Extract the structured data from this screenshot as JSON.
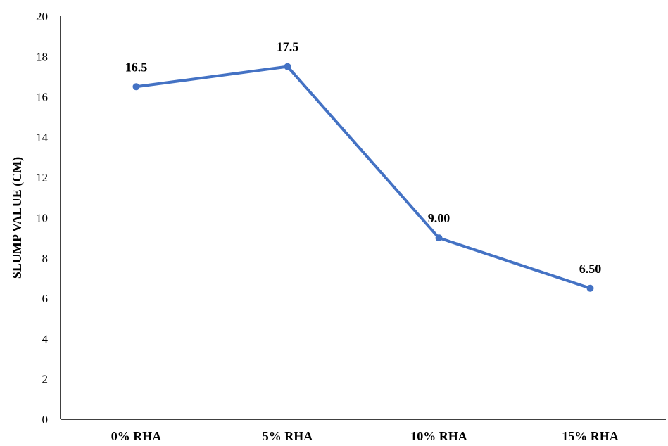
{
  "chart_data": {
    "type": "line",
    "title": "",
    "xlabel": "",
    "ylabel": "SLUMP VALUE (CM)",
    "categories": [
      "0% RHA",
      "5% RHA",
      "10% RHA",
      "15% RHA"
    ],
    "series": [
      {
        "values": [
          16.5,
          17.5,
          9.0,
          6.5
        ],
        "data_labels": [
          "16.5",
          "17.5",
          "9.00",
          "6.50"
        ],
        "color": "#4472C4"
      }
    ],
    "ylim": [
      0,
      20
    ],
    "yticks": [
      0,
      2,
      4,
      6,
      8,
      10,
      12,
      14,
      16,
      18,
      20
    ],
    "grid": false,
    "legend": "none"
  }
}
